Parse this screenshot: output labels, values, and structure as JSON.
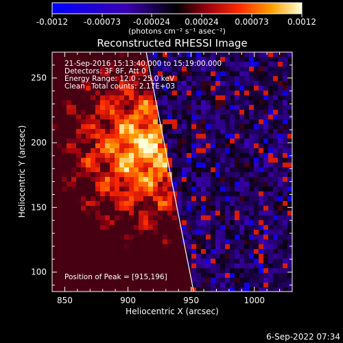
{
  "colorbar": {
    "ticks": [
      "-0.0012",
      "-0.00073",
      "-0.00024",
      "0.00024",
      "0.00073",
      "0.0012"
    ],
    "unit_label": "(photons cm⁻² s⁻¹ asec⁻²)"
  },
  "info": {
    "time_range": "21-Sep-2016 15:13:40.000 to 15:19:00.000",
    "detectors": "Detectors: 3F 8F, Att 0",
    "energy": "Energy Range: 12.0 - 25.0 keV",
    "method": "Clean",
    "counts": "Total counts: 2.17E+03",
    "peak": "Position of Peak = [915,196]"
  },
  "footer": {
    "timestamp": "6-Sep-2022 07:34"
  },
  "chart_data": {
    "type": "heatmap",
    "title": "Reconstructed RHESSI Image",
    "xlabel": "Heliocentric X (arcsec)",
    "ylabel": "Heliocentric Y (arcsec)",
    "xlim": [
      840,
      1030
    ],
    "ylim": [
      85,
      270
    ],
    "x_ticks": [
      850,
      900,
      950,
      1000
    ],
    "y_ticks": [
      100,
      150,
      200,
      250
    ],
    "x_tick_labels": [
      "850",
      "900",
      "950",
      "1000"
    ],
    "y_tick_labels": [
      "100",
      "150",
      "200",
      "250"
    ],
    "color_range": [
      -0.0012,
      0.0012
    ],
    "peak": [
      915,
      196
    ],
    "limb_line": [
      [
        914,
        272
      ],
      [
        952,
        85
      ]
    ]
  }
}
